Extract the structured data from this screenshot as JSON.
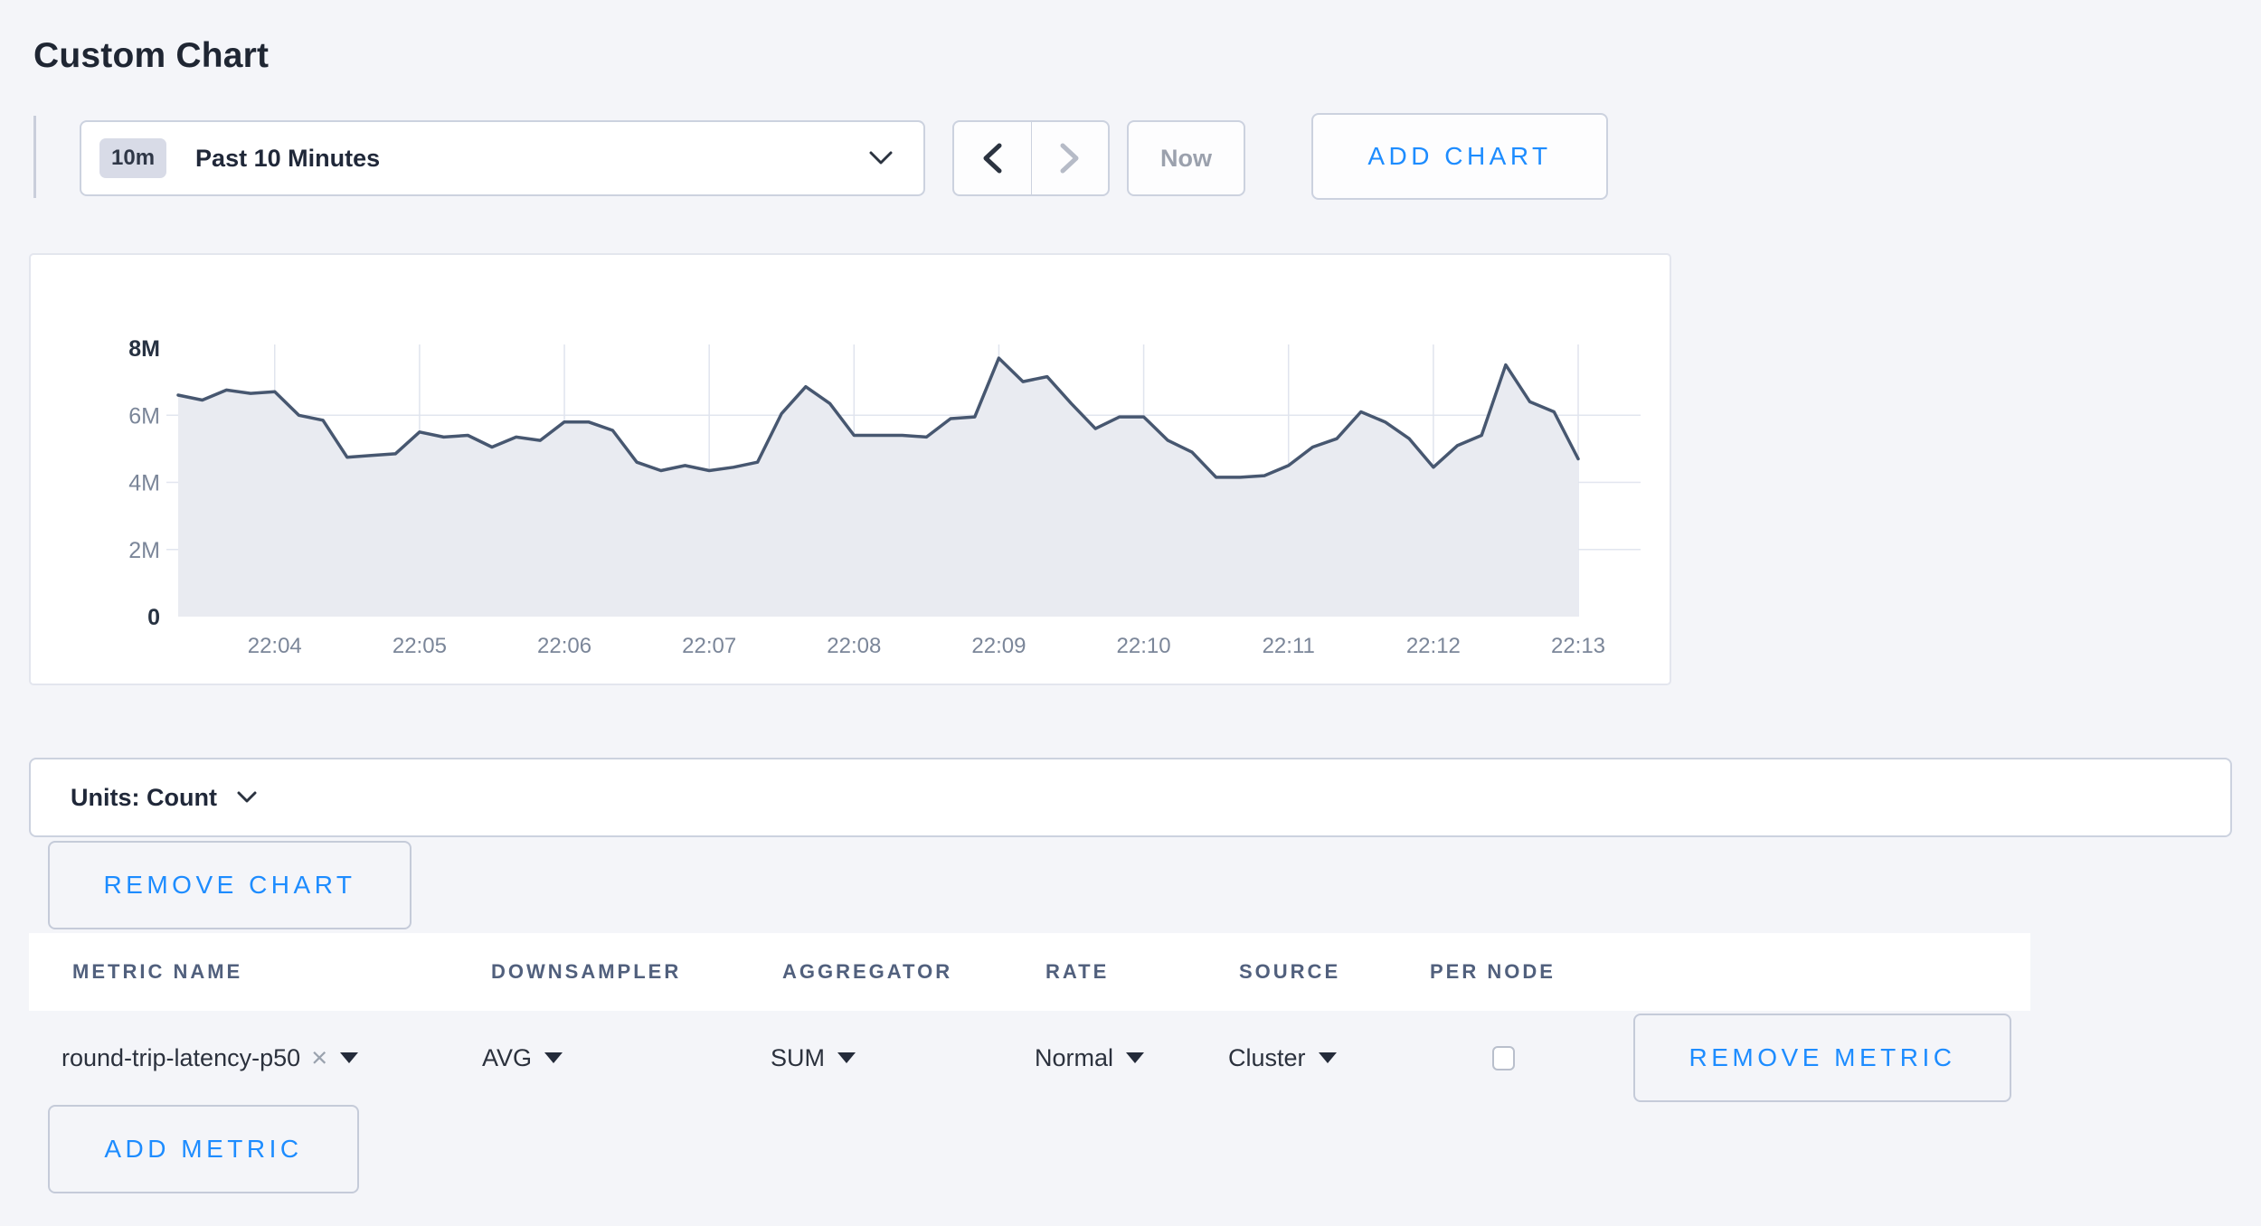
{
  "page": {
    "title": "Custom Chart"
  },
  "colors": {
    "background": "#f4f5f9",
    "accent_blue": "#1d8cff",
    "navy_text": "#202839",
    "muted_text": "#7b8699",
    "chart_line": "#475770",
    "chart_fill": "#e9ebf1",
    "gridline": "#e2e6ef"
  },
  "toolbar": {
    "time_range": {
      "badge": "10m",
      "label": "Past 10 Minutes"
    },
    "now_label": "Now",
    "add_chart_label": "ADD CHART"
  },
  "chart_data": {
    "type": "area",
    "title": "",
    "xlabel": "",
    "ylabel": "",
    "unit": "count",
    "grid": true,
    "legend": "none",
    "ylim_millions": [
      0,
      8
    ],
    "y_axis": {
      "max_millions": 8,
      "ticks": [
        {
          "label": "0",
          "value_millions": 0,
          "bold": true
        },
        {
          "label": "2M",
          "value_millions": 2,
          "bold": false
        },
        {
          "label": "4M",
          "value_millions": 4,
          "bold": false
        },
        {
          "label": "6M",
          "value_millions": 6,
          "bold": false
        },
        {
          "label": "8M",
          "value_millions": 8,
          "bold": true
        }
      ]
    },
    "x_axis": {
      "start_time": "22:03:20",
      "interval_seconds": 10,
      "tick_labels": [
        "22:04",
        "22:05",
        "22:06",
        "22:07",
        "22:08",
        "22:09",
        "22:10",
        "22:11",
        "22:12",
        "22:13"
      ],
      "first_tick_index": 4,
      "tick_step_points": 6
    },
    "series": [
      {
        "name": "round-trip-latency-p50",
        "values_millions": [
          6.6,
          6.45,
          6.75,
          6.65,
          6.7,
          6.0,
          5.85,
          4.75,
          4.8,
          4.85,
          5.5,
          5.35,
          5.4,
          5.05,
          5.35,
          5.25,
          5.8,
          5.8,
          5.55,
          4.6,
          4.35,
          4.5,
          4.35,
          4.45,
          4.6,
          6.05,
          6.85,
          6.35,
          5.4,
          5.4,
          5.4,
          5.35,
          5.9,
          5.95,
          7.7,
          7.0,
          7.15,
          6.35,
          5.6,
          5.95,
          5.95,
          5.25,
          4.9,
          4.15,
          4.15,
          4.2,
          4.5,
          5.05,
          5.3,
          6.1,
          5.8,
          5.3,
          4.45,
          5.1,
          5.4,
          7.5,
          6.4,
          6.1,
          4.7
        ]
      }
    ]
  },
  "units_bar": {
    "label": "Units: Count"
  },
  "remove_chart_label": "REMOVE CHART",
  "metrics_table": {
    "headers": [
      "METRIC NAME",
      "DOWNSAMPLER",
      "AGGREGATOR",
      "RATE",
      "SOURCE",
      "PER NODE"
    ],
    "row": {
      "metric_name": "round-trip-latency-p50",
      "clear_icon": "×",
      "downsampler": "AVG",
      "aggregator": "SUM",
      "rate": "Normal",
      "source": "Cluster",
      "per_node_checked": false,
      "remove_label": "REMOVE METRIC"
    },
    "add_metric_label": "ADD METRIC"
  }
}
